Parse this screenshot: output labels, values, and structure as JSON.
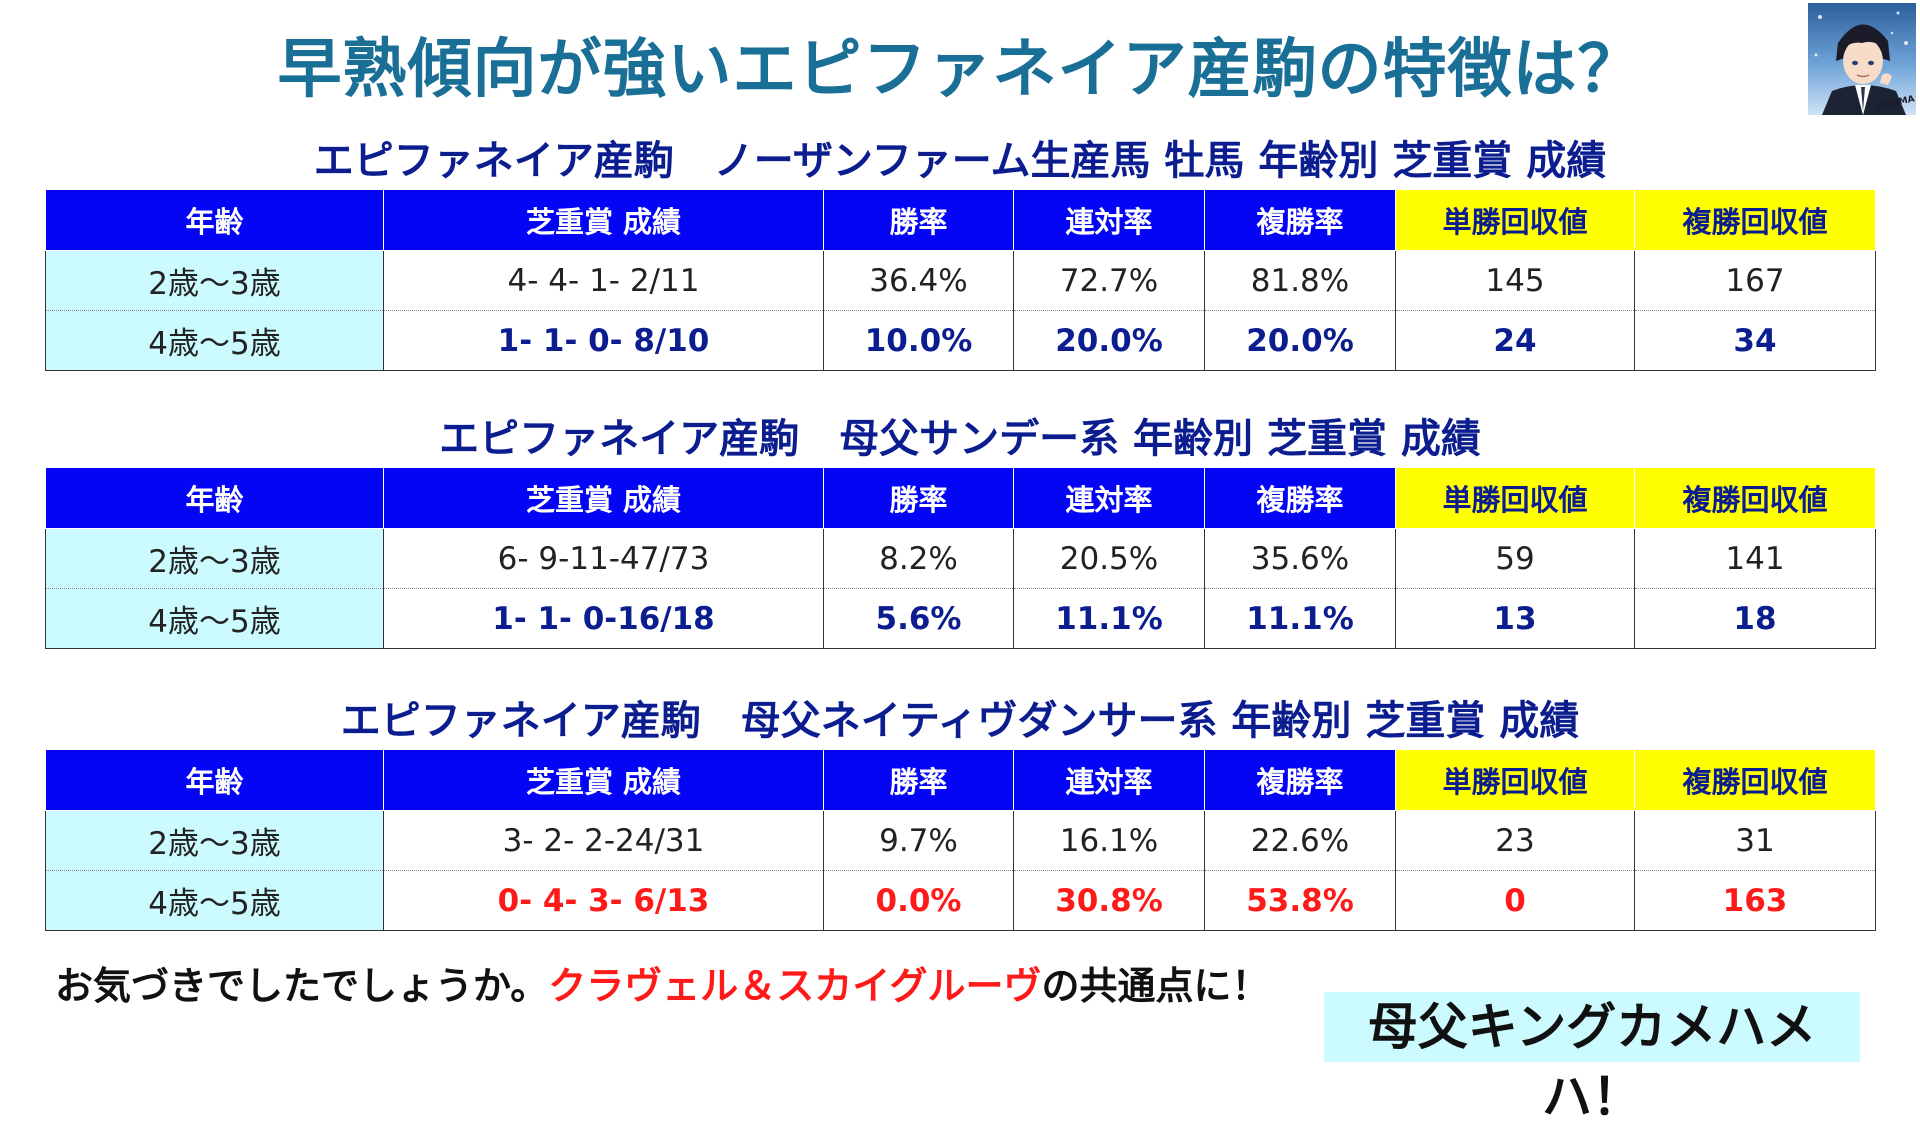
{
  "title": "早熟傾向が強いエピファネイア産駒の特徴は？",
  "columns": [
    "年齢",
    "芝重賞 成績",
    "勝率",
    "連対率",
    "複勝率",
    "単勝回収値",
    "複勝回収値"
  ],
  "tables": [
    {
      "title": "エピファネイア産駒　ノーザンファーム生産馬 牡馬 年齢別 芝重賞 成績",
      "rows": [
        [
          "2歳～3歳",
          "4- 4- 1- 2/11",
          "36.4%",
          "72.7%",
          "81.8%",
          "145",
          "167"
        ],
        [
          "4歳～5歳",
          "1- 1- 0- 8/10",
          "10.0%",
          "20.0%",
          "20.0%",
          "24",
          "34"
        ]
      ]
    },
    {
      "title": "エピファネイア産駒　母父サンデー系 年齢別 芝重賞 成績",
      "rows": [
        [
          "2歳～3歳",
          "6- 9-11-47/73",
          "8.2%",
          "20.5%",
          "35.6%",
          "59",
          "141"
        ],
        [
          "4歳～5歳",
          "1- 1- 0-16/18",
          "5.6%",
          "11.1%",
          "11.1%",
          "13",
          "18"
        ]
      ]
    },
    {
      "title": "エピファネイア産駒　母父ネイティヴダンサー系 年齢別 芝重賞 成績",
      "rows": [
        [
          "2歳～3歳",
          "3- 2- 2-24/31",
          "9.7%",
          "16.1%",
          "22.6%",
          "23",
          "31"
        ],
        [
          "4歳～5歳",
          "0- 4- 3- 6/13",
          "0.0%",
          "30.8%",
          "53.8%",
          "0",
          "163"
        ]
      ]
    }
  ],
  "note": {
    "prefix": "お気づきでしたでしょうか。",
    "highlight": "クラヴェル＆スカイグルーヴ",
    "suffix": "の共通点に！"
  },
  "callout": "母父キングカメハメハ！",
  "avatar": {
    "label_line1": "",
    "label_line2": "GANMA"
  },
  "colors": {
    "title": "#1a6f96",
    "section_title": "#0b1d8f",
    "header_blue": "#0505f5",
    "header_yellow": "#ffff00",
    "age_cell": "#ccfbff",
    "highlight_red": "#ff1a1a",
    "callout_bg": "#ccfbff"
  }
}
